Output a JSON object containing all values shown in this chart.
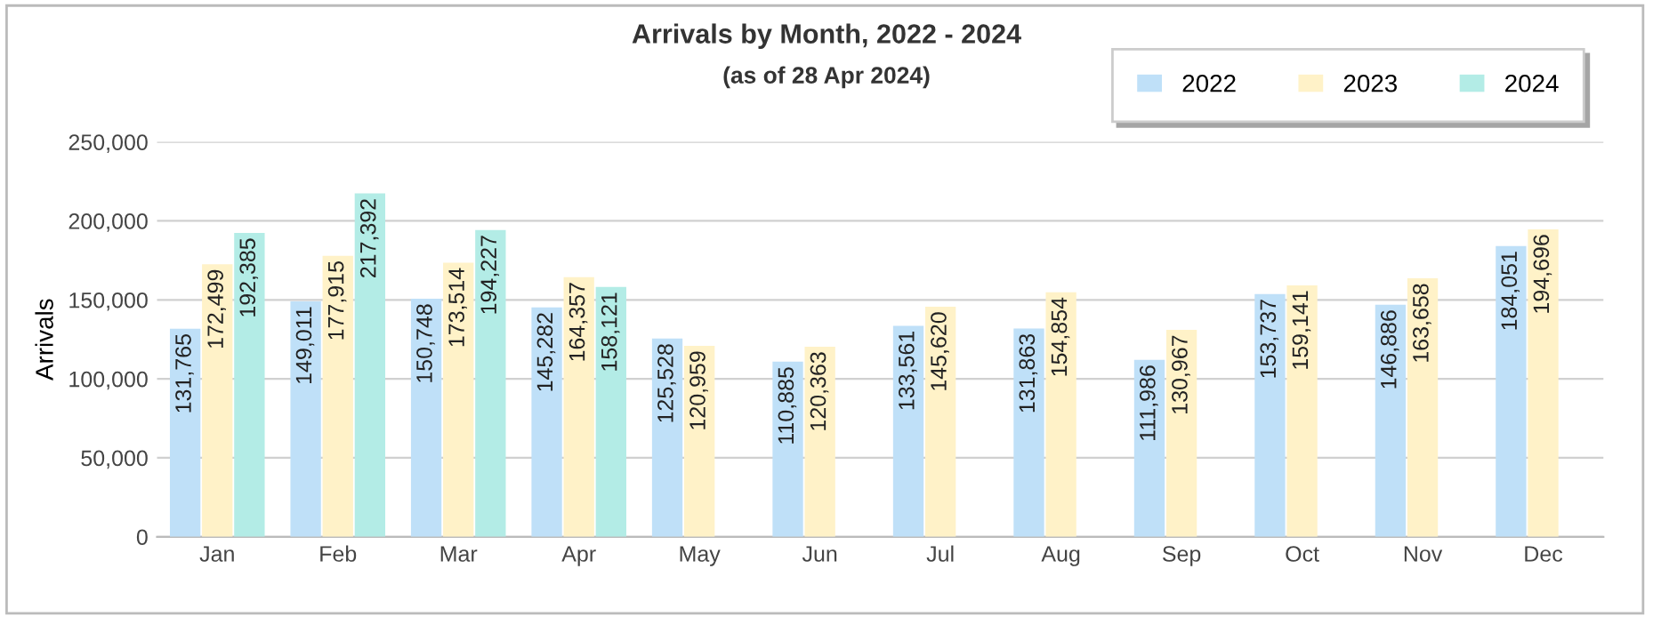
{
  "chart_data": {
    "type": "bar",
    "title": "Arrivals by Month, 2022 - 2024",
    "subtitle": "(as of 28 Apr 2024)",
    "ylabel": "Arrivals",
    "categories": [
      "Jan",
      "Feb",
      "Mar",
      "Apr",
      "May",
      "Jun",
      "Jul",
      "Aug",
      "Sep",
      "Oct",
      "Nov",
      "Dec"
    ],
    "series": [
      {
        "name": "2022",
        "color": "#bfe0f8",
        "values": [
          131765,
          149011,
          150748,
          145282,
          125528,
          110885,
          133561,
          131863,
          111986,
          153737,
          146886,
          184051
        ],
        "value_labels": [
          "131,765",
          "149,011",
          "150,748",
          "145,282",
          "125,528",
          "110,885",
          "133,561",
          "131,863",
          "111,986",
          "153,737",
          "146,886",
          "184,051"
        ]
      },
      {
        "name": "2023",
        "color": "#fff2c8",
        "values": [
          172499,
          177915,
          173514,
          164357,
          120959,
          120363,
          145620,
          154854,
          130967,
          159141,
          163658,
          194696
        ],
        "value_labels": [
          "172,499",
          "177,915",
          "173,514",
          "164,357",
          "120,959",
          "120,363",
          "145,620",
          "154,854",
          "130,967",
          "159,141",
          "163,658",
          "194,696"
        ]
      },
      {
        "name": "2024",
        "color": "#b3ece6",
        "values": [
          192385,
          217392,
          194227,
          158121,
          null,
          null,
          null,
          null,
          null,
          null,
          null,
          null
        ],
        "value_labels": [
          "192,385",
          "217,392",
          "194,227",
          "158,121",
          null,
          null,
          null,
          null,
          null,
          null,
          null,
          null
        ]
      }
    ],
    "ylim": [
      0,
      250000
    ],
    "yticks": [
      0,
      {
        "value": 50000,
        "label": "50,000"
      },
      {
        "value": 100000,
        "label": "100,000"
      },
      {
        "value": 150000,
        "label": "150,000"
      },
      {
        "value": 200000,
        "label": "200,000"
      },
      {
        "value": 250000,
        "label": "250,000"
      }
    ],
    "grid": "y",
    "legend": "top right"
  }
}
